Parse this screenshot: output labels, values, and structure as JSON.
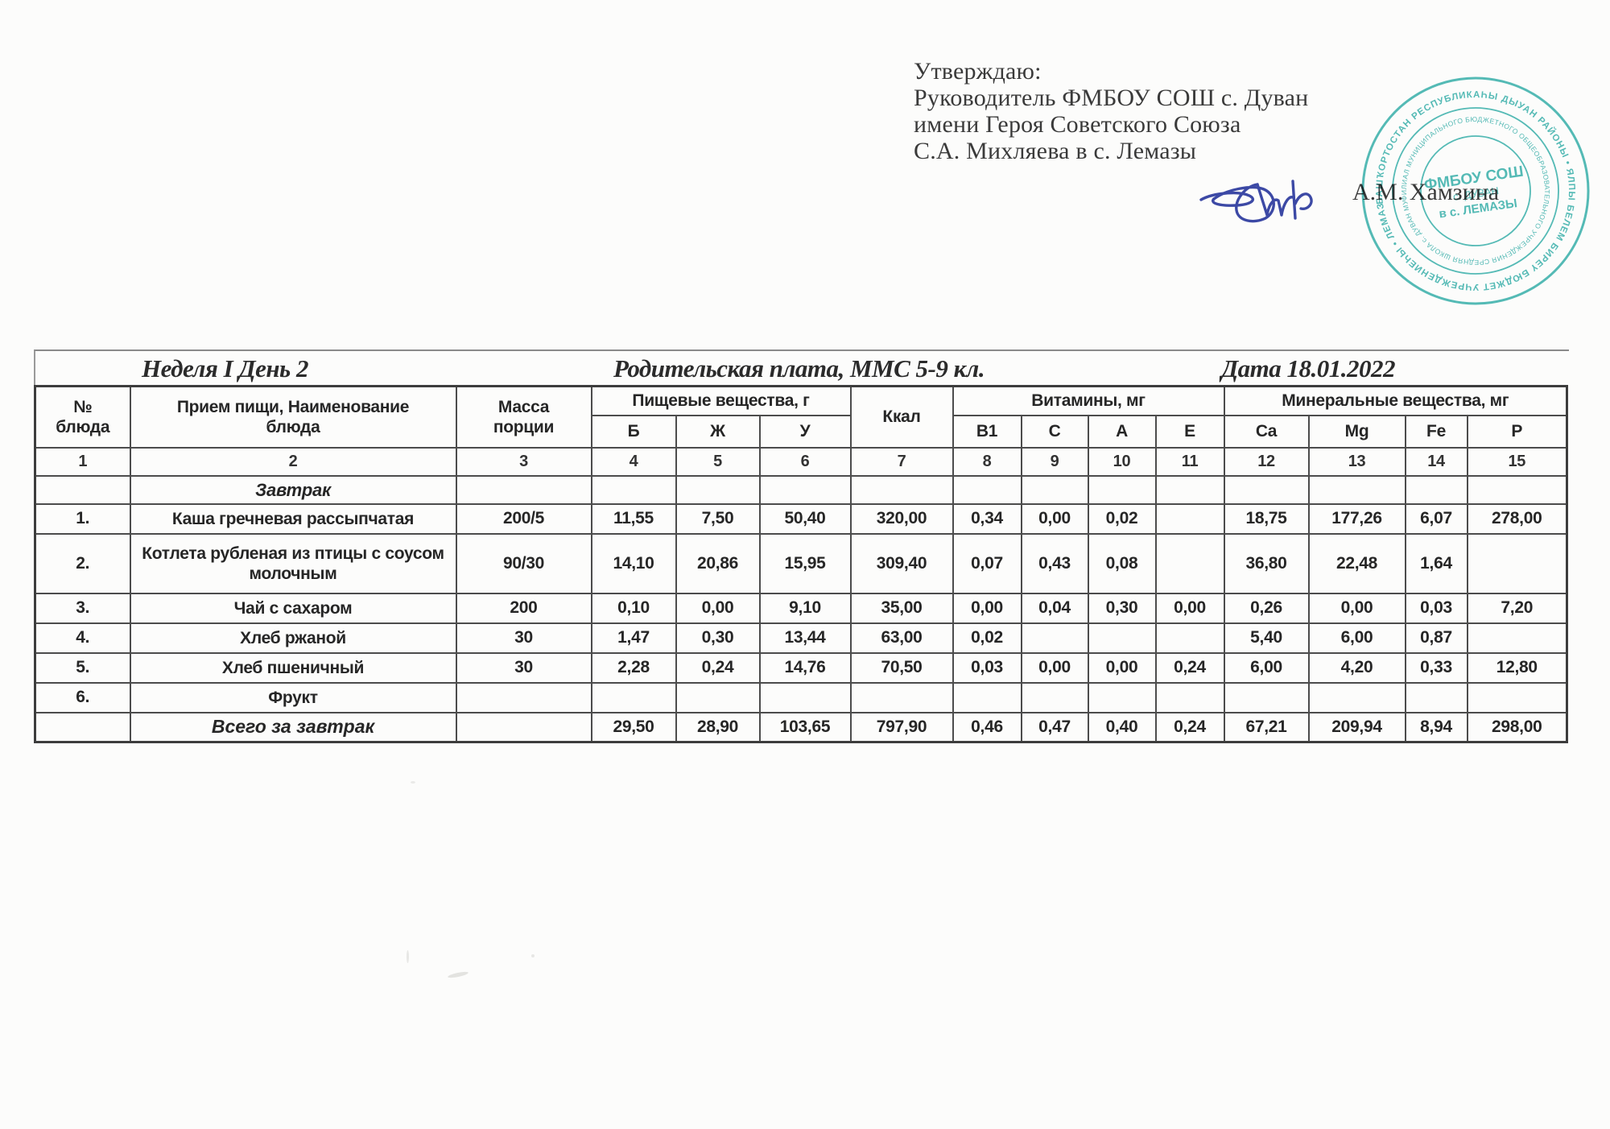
{
  "approval": {
    "line1": "Утверждаю:",
    "line2": "Руководитель ФМБОУ СОШ с. Дуван",
    "line3": "имени Героя Советского Союза",
    "line4": "С.А. Михляева в с. Лемазы",
    "signer": "А.М. Хамзина"
  },
  "stamp": {
    "color": "#2fada8",
    "outer_ring_text": "БАШҠОРТОСТАН РЕСПУБЛИКАҺЫ ДЫУАН РАЙОНЫ • ЯЛПЫ БЕЛЕМ БИРЕҮ БЮДЖЕТ УЧРЕЖДЕНИЕҺЫ • ЛЕМАЗЫ АУЫЛЫНДАГЫ ФИЛИАЛЫ •",
    "inner_ring_text": "ФИЛИАЛ МУНИЦИПАЛЬНОГО БЮДЖЕТНОГО ОБЩЕОБРАЗОВАТЕЛЬНОГО УЧРЕЖДЕНИЯ СРЕДНЯЯ ШКОЛА с. ДУВАН МУНИЦИПАЛЬНОГО РАЙОНА РЕСПУБЛИКИ БАШКОРТОСТАН (ФМБОУ СОШ с. ДУВАН в с. ЛЕМАЗЫ)",
    "center_line1": "ФМБОУ СОШ",
    "center_line2": "с. ДУВАН",
    "center_line3": "в с. ЛЕМАЗЫ"
  },
  "title": {
    "left": "Неделя I День 2",
    "center": "Родительская плата, ММС  5-9 кл.",
    "right": "Дата  18.01.2022"
  },
  "table": {
    "headers": {
      "num": "№\nблюда",
      "meal": "Прием пищи, Наименование\nблюда",
      "mass": "Масса\nпорции",
      "nutrients_group": "Пищевые вещества, г",
      "kcal": "Ккал",
      "vitamins_group": "Витамины, мг",
      "minerals_group": "Минеральные вещества, мг",
      "sub": [
        "Б",
        "Ж",
        "У",
        "В1",
        "С",
        "А",
        "Е",
        "Ca",
        "Mg",
        "Fe",
        "P"
      ]
    },
    "column_numbers": [
      "1",
      "2",
      "3",
      "4",
      "5",
      "6",
      "7",
      "8",
      "9",
      "10",
      "11",
      "12",
      "13",
      "14",
      "15"
    ],
    "rows": [
      {
        "type": "section",
        "cells": [
          "",
          "Завтрак",
          "",
          "",
          "",
          "",
          "",
          "",
          "",
          "",
          "",
          "",
          "",
          "",
          ""
        ]
      },
      {
        "type": "data",
        "cells": [
          "1.",
          "Каша гречневая рассыпчатая",
          "200/5",
          "11,55",
          "7,50",
          "50,40",
          "320,00",
          "0,34",
          "0,00",
          "0,02",
          "",
          "18,75",
          "177,26",
          "6,07",
          "278,00"
        ]
      },
      {
        "type": "data",
        "tall": true,
        "cells": [
          "2.",
          "Котлета рубленая из птицы с соусом молочным",
          "90/30",
          "14,10",
          "20,86",
          "15,95",
          "309,40",
          "0,07",
          "0,43",
          "0,08",
          "",
          "36,80",
          "22,48",
          "1,64",
          ""
        ]
      },
      {
        "type": "data",
        "cells": [
          "3.",
          "Чай с сахаром",
          "200",
          "0,10",
          "0,00",
          "9,10",
          "35,00",
          "0,00",
          "0,04",
          "0,30",
          "0,00",
          "0,26",
          "0,00",
          "0,03",
          "7,20"
        ]
      },
      {
        "type": "data",
        "cells": [
          "4.",
          "Хлеб ржаной",
          "30",
          "1,47",
          "0,30",
          "13,44",
          "63,00",
          "0,02",
          "",
          "",
          "",
          "5,40",
          "6,00",
          "0,87",
          ""
        ]
      },
      {
        "type": "data",
        "cells": [
          "5.",
          "Хлеб пшеничный",
          "30",
          "2,28",
          "0,24",
          "14,76",
          "70,50",
          "0,03",
          "0,00",
          "0,00",
          "0,24",
          "6,00",
          "4,20",
          "0,33",
          "12,80"
        ]
      },
      {
        "type": "data",
        "cells": [
          "6.",
          "Фрукт",
          "",
          "",
          "",
          "",
          "",
          "",
          "",
          "",
          "",
          "",
          "",
          "",
          ""
        ]
      },
      {
        "type": "total",
        "cells": [
          "",
          "Всего за завтрак",
          "",
          "29,50",
          "28,90",
          "103,65",
          "797,90",
          "0,46",
          "0,47",
          "0,40",
          "0,24",
          "67,21",
          "209,94",
          "8,94",
          "298,00"
        ]
      }
    ]
  }
}
